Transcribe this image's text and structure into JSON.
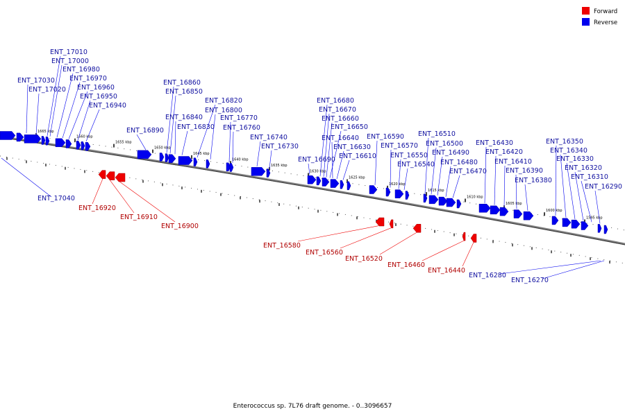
{
  "caption": "Enterococcus sp. 7L76 draft genome. - 0..3096657",
  "legend": {
    "forward_label": "Forward",
    "reverse_label": "Reverse",
    "forward_color": "#ee0000",
    "reverse_color": "#0000ee"
  },
  "colors": {
    "backbone": "#808080",
    "label_reverse": "#1010a0",
    "label_forward": "#b00000",
    "leader_reverse": "#0000ee",
    "leader_forward": "#ee0000"
  },
  "ticks": [
    "1665 kbp",
    "1660 kbp",
    "1655 kbp",
    "1650 kbp",
    "1645 kbp",
    "1640 kbp",
    "1635 kbp",
    "1630 kbp",
    "1625 kbp",
    "1620 kbp",
    "1615 kbp",
    "1610 kbp",
    "1605 kbp",
    "1600 kbp",
    "1595 kbp"
  ],
  "reverse_genes": [
    "ENT_17040",
    "ENT_17030",
    "ENT_17020",
    "ENT_17010",
    "ENT_17000",
    "ENT_16980",
    "ENT_16970",
    "ENT_16960",
    "ENT_16950",
    "ENT_16940",
    "ENT_16890",
    "ENT_16860",
    "ENT_16850",
    "ENT_16840",
    "ENT_16830",
    "ENT_16820",
    "ENT_16800",
    "ENT_16770",
    "ENT_16760",
    "ENT_16740",
    "ENT_16730",
    "ENT_16690",
    "ENT_16680",
    "ENT_16670",
    "ENT_16660",
    "ENT_16650",
    "ENT_16640",
    "ENT_16630",
    "ENT_16610",
    "ENT_16590",
    "ENT_16570",
    "ENT_16550",
    "ENT_16540",
    "ENT_16510",
    "ENT_16500",
    "ENT_16490",
    "ENT_16480",
    "ENT_16470",
    "ENT_16430",
    "ENT_16420",
    "ENT_16410",
    "ENT_16390",
    "ENT_16380",
    "ENT_16350",
    "ENT_16340",
    "ENT_16330",
    "ENT_16320",
    "ENT_16310",
    "ENT_16290",
    "ENT_16280",
    "ENT_16270"
  ],
  "forward_genes": [
    "ENT_16920",
    "ENT_16910",
    "ENT_16900",
    "ENT_16580",
    "ENT_16560",
    "ENT_16520",
    "ENT_16460",
    "ENT_16440"
  ]
}
